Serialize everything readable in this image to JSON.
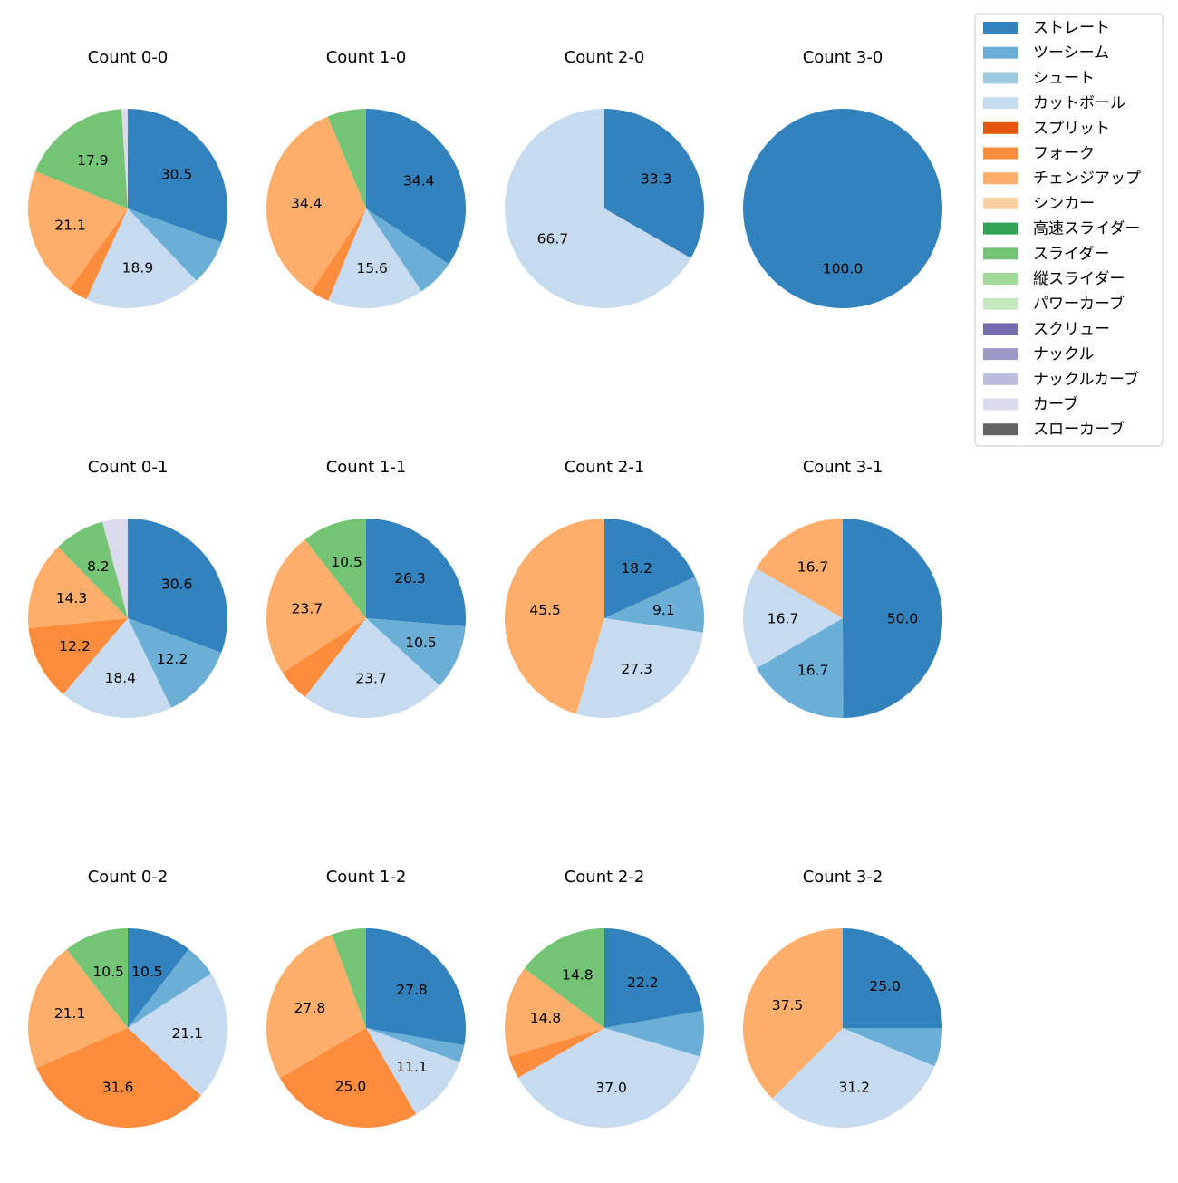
{
  "chart_data": {
    "type": "pie",
    "legend": {
      "placement": "top-right",
      "entries": [
        {
          "name": "ストレート",
          "color": "#3182bd"
        },
        {
          "name": "ツーシーム",
          "color": "#6baed6"
        },
        {
          "name": "シュート",
          "color": "#9ecae1"
        },
        {
          "name": "カットボール",
          "color": "#c6dbef"
        },
        {
          "name": "スプリット",
          "color": "#e6550d"
        },
        {
          "name": "フォーク",
          "color": "#fd8d3c"
        },
        {
          "name": "チェンジアップ",
          "color": "#fdae6b"
        },
        {
          "name": "シンカー",
          "color": "#fdd0a2"
        },
        {
          "name": "高速スライダー",
          "color": "#31a354"
        },
        {
          "name": "スライダー",
          "color": "#74c476"
        },
        {
          "name": "縦スライダー",
          "color": "#a1d99b"
        },
        {
          "name": "パワーカーブ",
          "color": "#c7e9c0"
        },
        {
          "name": "スクリュー",
          "color": "#756bb1"
        },
        {
          "name": "ナックル",
          "color": "#9e9ac8"
        },
        {
          "name": "ナックルカーブ",
          "color": "#bcbddc"
        },
        {
          "name": "カーブ",
          "color": "#dadaeb"
        },
        {
          "name": "スローカーブ",
          "color": "#636363"
        }
      ]
    },
    "pies": [
      {
        "title": "Count 0-0",
        "slices": [
          {
            "pitch": "ストレート",
            "value": 30.5,
            "label": "30.5"
          },
          {
            "pitch": "ツーシーム",
            "value": 7.4,
            "label": ""
          },
          {
            "pitch": "カットボール",
            "value": 18.9,
            "label": "18.9"
          },
          {
            "pitch": "フォーク",
            "value": 3.2,
            "label": ""
          },
          {
            "pitch": "チェンジアップ",
            "value": 21.1,
            "label": "21.1"
          },
          {
            "pitch": "スライダー",
            "value": 17.9,
            "label": "17.9"
          },
          {
            "pitch": "カーブ",
            "value": 1.0,
            "label": ""
          }
        ]
      },
      {
        "title": "Count 1-0",
        "slices": [
          {
            "pitch": "ストレート",
            "value": 34.4,
            "label": "34.4"
          },
          {
            "pitch": "ツーシーム",
            "value": 6.2,
            "label": ""
          },
          {
            "pitch": "カットボール",
            "value": 15.6,
            "label": "15.6"
          },
          {
            "pitch": "フォーク",
            "value": 3.1,
            "label": ""
          },
          {
            "pitch": "チェンジアップ",
            "value": 34.4,
            "label": "34.4"
          },
          {
            "pitch": "スライダー",
            "value": 6.3,
            "label": ""
          }
        ]
      },
      {
        "title": "Count 2-0",
        "slices": [
          {
            "pitch": "ストレート",
            "value": 33.3,
            "label": "33.3"
          },
          {
            "pitch": "カットボール",
            "value": 66.7,
            "label": "66.7"
          }
        ]
      },
      {
        "title": "Count 3-0",
        "slices": [
          {
            "pitch": "ストレート",
            "value": 100.0,
            "label": "100.0"
          }
        ]
      },
      {
        "title": "Count 0-1",
        "slices": [
          {
            "pitch": "ストレート",
            "value": 30.6,
            "label": "30.6"
          },
          {
            "pitch": "ツーシーム",
            "value": 12.2,
            "label": "12.2"
          },
          {
            "pitch": "カットボール",
            "value": 18.4,
            "label": "18.4"
          },
          {
            "pitch": "フォーク",
            "value": 12.2,
            "label": "12.2"
          },
          {
            "pitch": "チェンジアップ",
            "value": 14.3,
            "label": "14.3"
          },
          {
            "pitch": "スライダー",
            "value": 8.2,
            "label": "8.2"
          },
          {
            "pitch": "カーブ",
            "value": 4.1,
            "label": ""
          }
        ]
      },
      {
        "title": "Count 1-1",
        "slices": [
          {
            "pitch": "ストレート",
            "value": 26.3,
            "label": "26.3"
          },
          {
            "pitch": "ツーシーム",
            "value": 10.5,
            "label": "10.5"
          },
          {
            "pitch": "カットボール",
            "value": 23.7,
            "label": "23.7"
          },
          {
            "pitch": "フォーク",
            "value": 5.3,
            "label": ""
          },
          {
            "pitch": "チェンジアップ",
            "value": 23.7,
            "label": "23.7"
          },
          {
            "pitch": "スライダー",
            "value": 10.5,
            "label": "10.5"
          }
        ]
      },
      {
        "title": "Count 2-1",
        "slices": [
          {
            "pitch": "ストレート",
            "value": 18.2,
            "label": "18.2"
          },
          {
            "pitch": "ツーシーム",
            "value": 9.1,
            "label": "9.1"
          },
          {
            "pitch": "カットボール",
            "value": 27.3,
            "label": "27.3"
          },
          {
            "pitch": "チェンジアップ",
            "value": 45.5,
            "label": "45.5"
          }
        ]
      },
      {
        "title": "Count 3-1",
        "slices": [
          {
            "pitch": "ストレート",
            "value": 50.0,
            "label": "50.0"
          },
          {
            "pitch": "ツーシーム",
            "value": 16.7,
            "label": "16.7"
          },
          {
            "pitch": "カットボール",
            "value": 16.7,
            "label": "16.7"
          },
          {
            "pitch": "チェンジアップ",
            "value": 16.7,
            "label": "16.7"
          }
        ]
      },
      {
        "title": "Count 0-2",
        "slices": [
          {
            "pitch": "ストレート",
            "value": 10.5,
            "label": "10.5"
          },
          {
            "pitch": "ツーシーム",
            "value": 5.3,
            "label": ""
          },
          {
            "pitch": "カットボール",
            "value": 21.1,
            "label": "21.1"
          },
          {
            "pitch": "フォーク",
            "value": 31.6,
            "label": "31.6"
          },
          {
            "pitch": "チェンジアップ",
            "value": 21.1,
            "label": "21.1"
          },
          {
            "pitch": "スライダー",
            "value": 10.5,
            "label": "10.5"
          }
        ]
      },
      {
        "title": "Count 1-2",
        "slices": [
          {
            "pitch": "ストレート",
            "value": 27.8,
            "label": "27.8"
          },
          {
            "pitch": "ツーシーム",
            "value": 2.8,
            "label": ""
          },
          {
            "pitch": "カットボール",
            "value": 11.1,
            "label": "11.1"
          },
          {
            "pitch": "フォーク",
            "value": 25.0,
            "label": "25.0"
          },
          {
            "pitch": "チェンジアップ",
            "value": 27.8,
            "label": "27.8"
          },
          {
            "pitch": "スライダー",
            "value": 5.6,
            "label": ""
          }
        ]
      },
      {
        "title": "Count 2-2",
        "slices": [
          {
            "pitch": "ストレート",
            "value": 22.2,
            "label": "22.2"
          },
          {
            "pitch": "ツーシーム",
            "value": 7.4,
            "label": ""
          },
          {
            "pitch": "カットボール",
            "value": 37.0,
            "label": "37.0"
          },
          {
            "pitch": "フォーク",
            "value": 3.7,
            "label": ""
          },
          {
            "pitch": "チェンジアップ",
            "value": 14.8,
            "label": "14.8"
          },
          {
            "pitch": "スライダー",
            "value": 14.8,
            "label": "14.8"
          }
        ]
      },
      {
        "title": "Count 3-2",
        "slices": [
          {
            "pitch": "ストレート",
            "value": 25.0,
            "label": "25.0"
          },
          {
            "pitch": "ツーシーム",
            "value": 6.3,
            "label": ""
          },
          {
            "pitch": "カットボール",
            "value": 31.2,
            "label": "31.2"
          },
          {
            "pitch": "チェンジアップ",
            "value": 37.5,
            "label": "37.5"
          }
        ]
      }
    ]
  }
}
